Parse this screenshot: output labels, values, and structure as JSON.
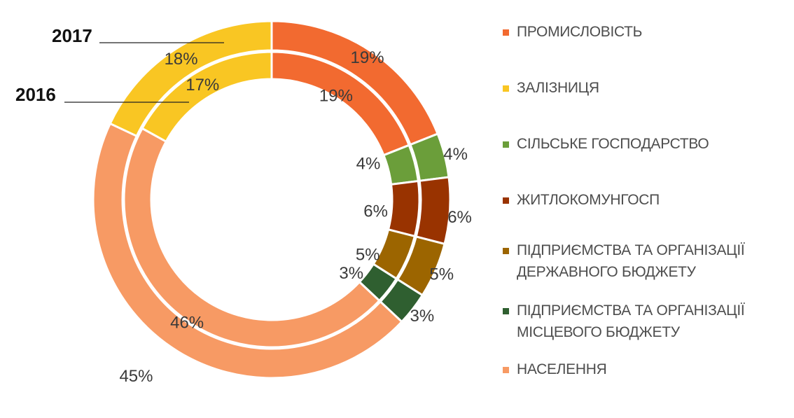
{
  "chart_data": {
    "type": "donut",
    "categories": [
      "ПРОМИСЛОВІСТЬ",
      "ЗАЛІЗНИЦЯ",
      "СІЛЬСЬКЕ ГОСПОДАРСТВО",
      "ЖИТЛОКОМУНГОСП",
      "ПІДПРИЄМСТВА ТА ОРГАНІЗАЦІЇ ДЕРЖАВНОГО БЮДЖЕТУ",
      "ПІДПРИЄМСТВА ТА ОРГАНІЗАЦІЇ МІСЦЕВОГО БЮДЖЕТУ",
      "НАСЕЛЕННЯ"
    ],
    "colors": [
      "#f26a30",
      "#f9c623",
      "#6b9e3a",
      "#993300",
      "#9c6500",
      "#2f5f30",
      "#f79a64"
    ],
    "series": [
      {
        "name": "2017",
        "ring": "outer",
        "values": [
          19,
          4,
          6,
          5,
          3,
          45,
          18
        ]
      },
      {
        "name": "2016",
        "ring": "inner",
        "values": [
          19,
          4,
          6,
          5,
          3,
          46,
          17
        ]
      }
    ],
    "order": [
      0,
      2,
      3,
      4,
      5,
      6,
      1
    ],
    "value_labels": {
      "outer": [
        "19%",
        "4%",
        "6%",
        "5%",
        "3%",
        "45%",
        "18%"
      ],
      "inner": [
        "19%",
        "4%",
        "6%",
        "5%",
        "3%",
        "46%",
        "17%"
      ]
    },
    "legend_position": "right"
  },
  "ring_labels": {
    "outer": "2017",
    "inner": "2016"
  },
  "legend": {
    "items": [
      {
        "line1": "ПРОМИСЛОВІСТЬ",
        "line2": "",
        "color": "#f26a30"
      },
      {
        "line1": "ЗАЛІЗНИЦЯ",
        "line2": "",
        "color": "#f9c623"
      },
      {
        "line1": "СІЛЬСЬКЕ ГОСПОДАРСТВО",
        "line2": "",
        "color": "#6b9e3a"
      },
      {
        "line1": "ЖИТЛОКОМУНГОСП",
        "line2": "",
        "color": "#993300"
      },
      {
        "line1": "ПІДПРИЄМСТВА ТА ОРГАНІЗАЦІЇ",
        "line2": "ДЕРЖАВНОГО БЮДЖЕТУ",
        "color": "#9c6500"
      },
      {
        "line1": "ПІДПРИЄМСТВА ТА ОРГАНІЗАЦІЇ",
        "line2": "МІСЦЕВОГО БЮДЖЕТУ",
        "color": "#2f5f30"
      },
      {
        "line1": "НАСЕЛЕННЯ",
        "line2": "",
        "color": "#f79a64"
      }
    ]
  }
}
